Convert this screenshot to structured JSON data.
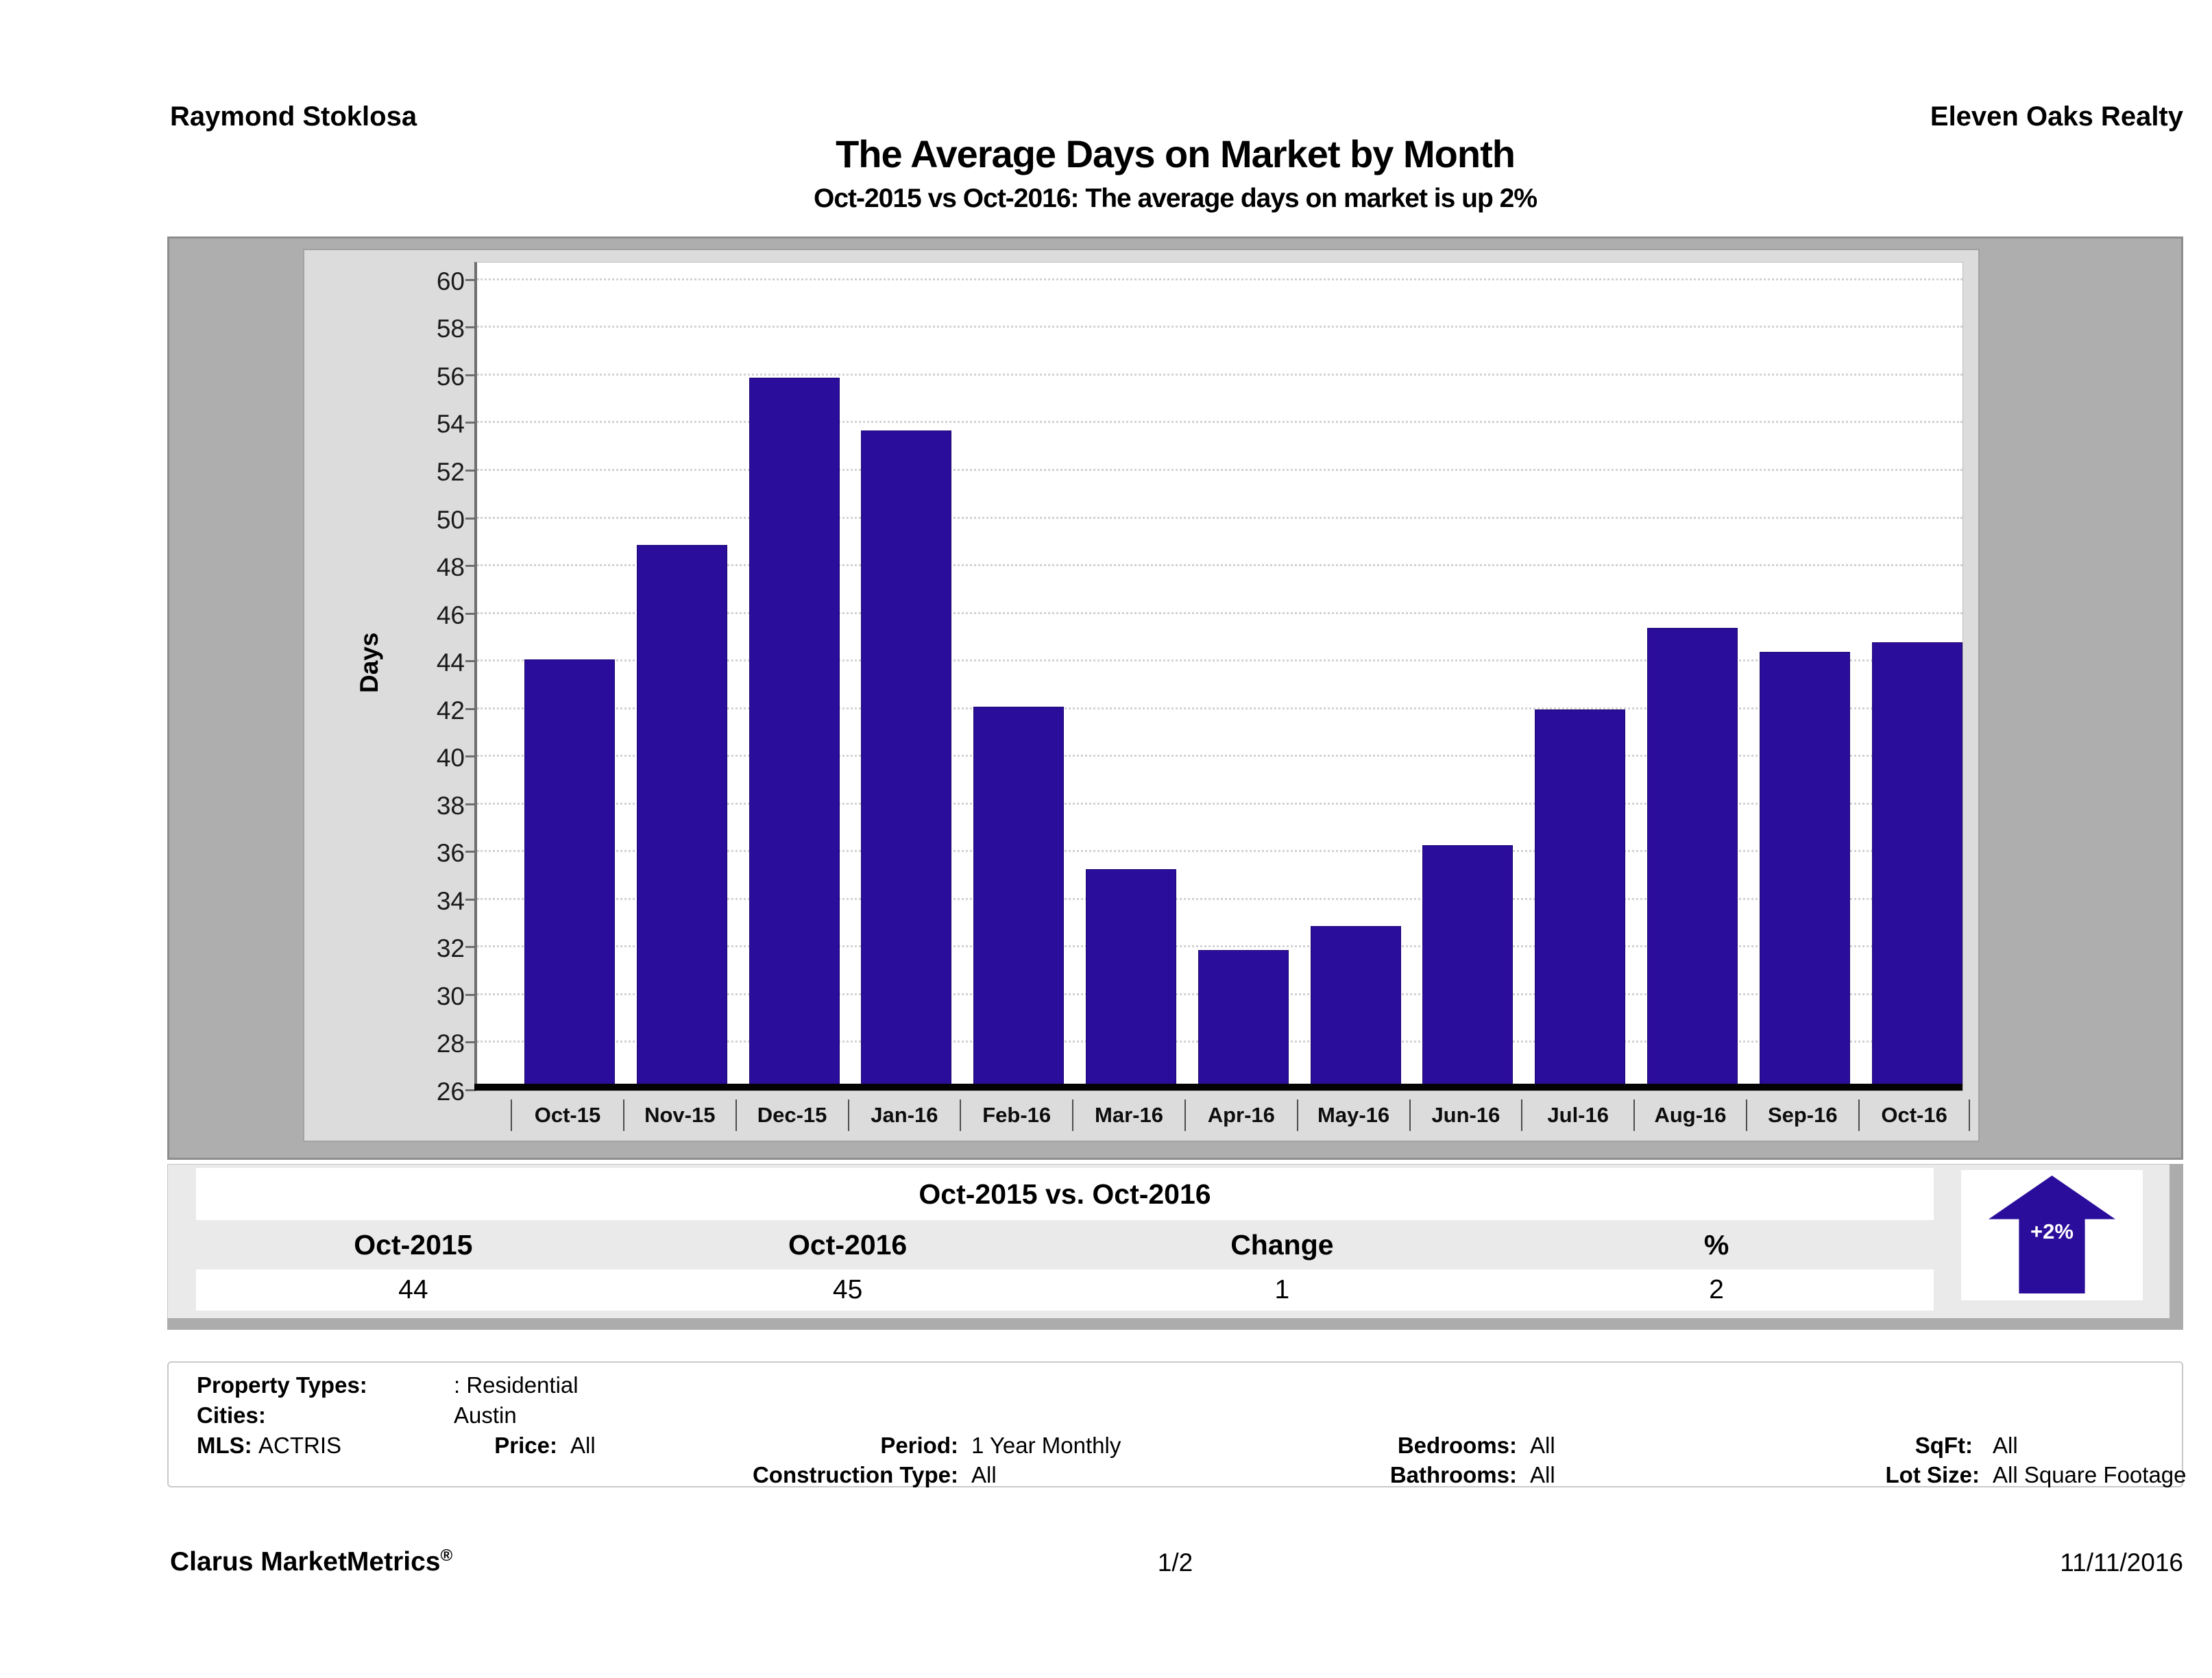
{
  "header": {
    "agent": "Raymond Stoklosa",
    "company": "Eleven Oaks Realty",
    "title": "The Average Days on Market by Month",
    "subtitle": "Oct-2015 vs Oct-2016: The average days on market is up 2%"
  },
  "chart_data": {
    "type": "bar",
    "title": "The Average Days on Market by Month",
    "xlabel": "",
    "ylabel": "Days",
    "categories": [
      "Oct-15",
      "Nov-15",
      "Dec-15",
      "Jan-16",
      "Feb-16",
      "Mar-16",
      "Apr-16",
      "May-16",
      "Jun-16",
      "Jul-16",
      "Aug-16",
      "Sep-16",
      "Oct-16"
    ],
    "values": [
      44.1,
      48.9,
      55.9,
      53.7,
      42.1,
      35.3,
      31.9,
      32.9,
      36.3,
      42.0,
      45.4,
      44.4,
      44.8
    ],
    "ylim": [
      26,
      60
    ],
    "ytick_step": 2,
    "grid": "horizontal-dotted",
    "legend": "none",
    "bar_color": "#2b0d9b"
  },
  "comparison_table": {
    "title": "Oct-2015 vs. Oct-2016",
    "columns": [
      "Oct-2015",
      "Oct-2016",
      "Change",
      "%"
    ],
    "values": [
      "44",
      "45",
      "1",
      "2"
    ],
    "badge": {
      "label": "+2%",
      "direction": "up",
      "color": "#2b0d9b"
    }
  },
  "filters": {
    "property_types_label": "Property Types:",
    "property_types": ": Residential",
    "cities_label": "Cities:",
    "cities": "Austin",
    "mls_label": "MLS:",
    "mls": "ACTRIS",
    "price_label": "Price:",
    "price": "All",
    "period_label": "Period:",
    "period": "1 Year Monthly",
    "bedrooms_label": "Bedrooms:",
    "bedrooms": "All",
    "sqft_label": "SqFt:",
    "sqft": "All",
    "construction_label": "Construction Type:",
    "construction": "All",
    "bathrooms_label": "Bathrooms:",
    "bathrooms": "All",
    "lot_label": "Lot Size:",
    "lot": "All Square Footage"
  },
  "footer": {
    "brand": "Clarus MarketMetrics",
    "reg": "®",
    "page": "1/2",
    "date": "11/11/2016"
  }
}
